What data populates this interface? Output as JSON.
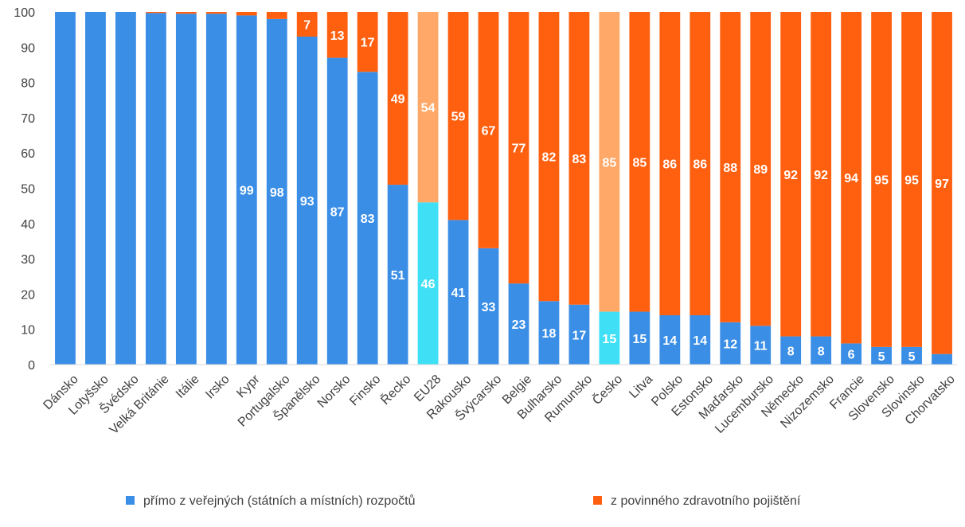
{
  "chart_data": {
    "type": "bar",
    "stacked": true,
    "categories": [
      "Dánsko",
      "Lotyšsko",
      "Švédsko",
      "Velká Británie",
      "Itálie",
      "Irsko",
      "Kypr",
      "Portugalsko",
      "Španělsko",
      "Norsko",
      "Finsko",
      "Řecko",
      "EU28",
      "Rakousko",
      "Švýcarsko",
      "Belgie",
      "Bulharsko",
      "Rumunsko",
      "Česko",
      "Litva",
      "Polsko",
      "Estonsko",
      "Maďarsko",
      "Lucembursko",
      "Německo",
      "Nizozemsko",
      "Francie",
      "Slovensko",
      "Slovinsko",
      "Chorvatsko"
    ],
    "series": [
      {
        "name": "přímo z veřejných (státních a místních) rozpočtů",
        "color": "#3A8EE6",
        "highlight_color": "#3FE0F5",
        "values": [
          100,
          100,
          100,
          99.7,
          99.5,
          99.5,
          99,
          98,
          93,
          87,
          83,
          51,
          46,
          41,
          33,
          23,
          18,
          17,
          15,
          15,
          14,
          14,
          12,
          11,
          8,
          8,
          6,
          5,
          5,
          3
        ],
        "labels": [
          "",
          "",
          "",
          "",
          "",
          "",
          "99",
          "98",
          "93",
          "87",
          "83",
          "51",
          "46",
          "41",
          "33",
          "23",
          "18",
          "17",
          "15",
          "15",
          "14",
          "14",
          "12",
          "11",
          "8",
          "8",
          "6",
          "5",
          "5",
          ""
        ]
      },
      {
        "name": "z povinného zdravotního pojištění",
        "color": "#FF6010",
        "highlight_color": "#FFA868",
        "values": [
          0,
          0,
          0,
          0.3,
          0.5,
          0.5,
          1,
          2,
          7,
          13,
          17,
          49,
          54,
          59,
          67,
          77,
          82,
          83,
          85,
          85,
          86,
          86,
          88,
          89,
          92,
          92,
          94,
          95,
          95,
          97
        ],
        "labels": [
          "",
          "",
          "",
          "",
          "",
          "",
          "",
          "",
          "7",
          "13",
          "17",
          "49",
          "54",
          "59",
          "67",
          "77",
          "82",
          "83",
          "85",
          "85",
          "86",
          "86",
          "88",
          "89",
          "92",
          "92",
          "94",
          "95",
          "95",
          "97"
        ]
      }
    ],
    "highlight_categories": [
      "EU28",
      "Česko"
    ],
    "y_ticks": [
      "0",
      "10",
      "20",
      "30",
      "40",
      "50",
      "60",
      "70",
      "80",
      "90",
      "100"
    ],
    "ylim": [
      0,
      100
    ],
    "grid": false,
    "legend_position": "bottom"
  }
}
